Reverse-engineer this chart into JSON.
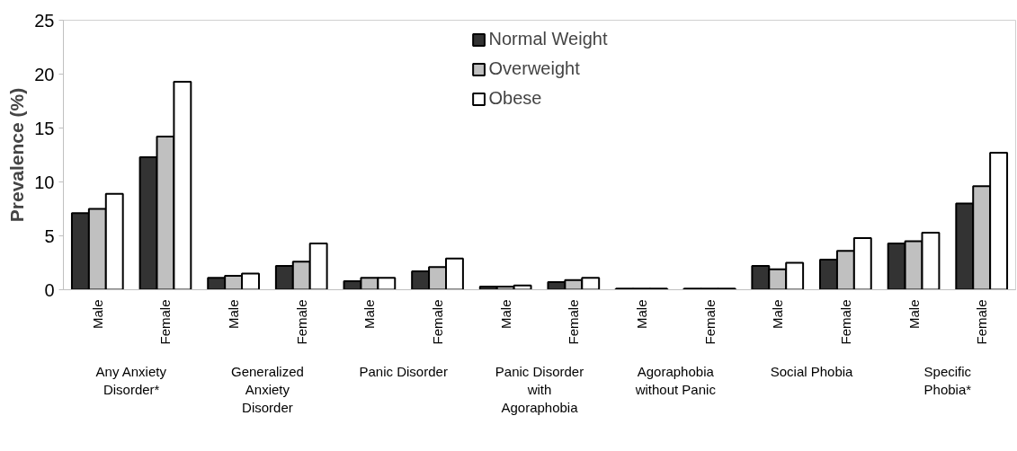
{
  "chart_data": {
    "type": "bar",
    "ylabel": "Prevalence (%)",
    "categories": [
      "Male",
      "Female",
      "Male",
      "Female",
      "Male",
      "Female",
      "Male",
      "Female",
      "Male",
      "Female",
      "Male",
      "Female",
      "Male",
      "Female"
    ],
    "series": [
      {
        "name": "Normal Weight",
        "color": "#333333",
        "values": [
          7.1,
          12.3,
          1.1,
          2.2,
          0.8,
          1.7,
          0.3,
          0.7,
          0.1,
          0.1,
          2.2,
          2.8,
          4.3,
          8.0
        ]
      },
      {
        "name": "Overweight",
        "color": "#c0c0c0",
        "values": [
          7.5,
          14.2,
          1.3,
          2.6,
          1.1,
          2.1,
          0.3,
          0.9,
          0.1,
          0.1,
          1.9,
          3.6,
          4.5,
          9.6
        ]
      },
      {
        "name": "Obese",
        "color": "#ffffff",
        "values": [
          8.9,
          19.3,
          1.5,
          4.3,
          1.1,
          2.9,
          0.4,
          1.1,
          0.1,
          0.1,
          2.5,
          4.8,
          5.3,
          12.7
        ]
      }
    ],
    "annotations": [
      "Any Anxiety\nDisorder*",
      "Generalized\nAnxiety\nDisorder",
      "Panic Disorder",
      "Panic Disorder\nwith\nAgoraphobia",
      "Agoraphobia\nwithout Panic",
      "Social Phobia",
      "Specific\nPhobia*"
    ],
    "ylim": [
      0,
      25
    ],
    "yticks": [
      0,
      5,
      10,
      15,
      20,
      25
    ],
    "grid": false,
    "legend": "top"
  }
}
